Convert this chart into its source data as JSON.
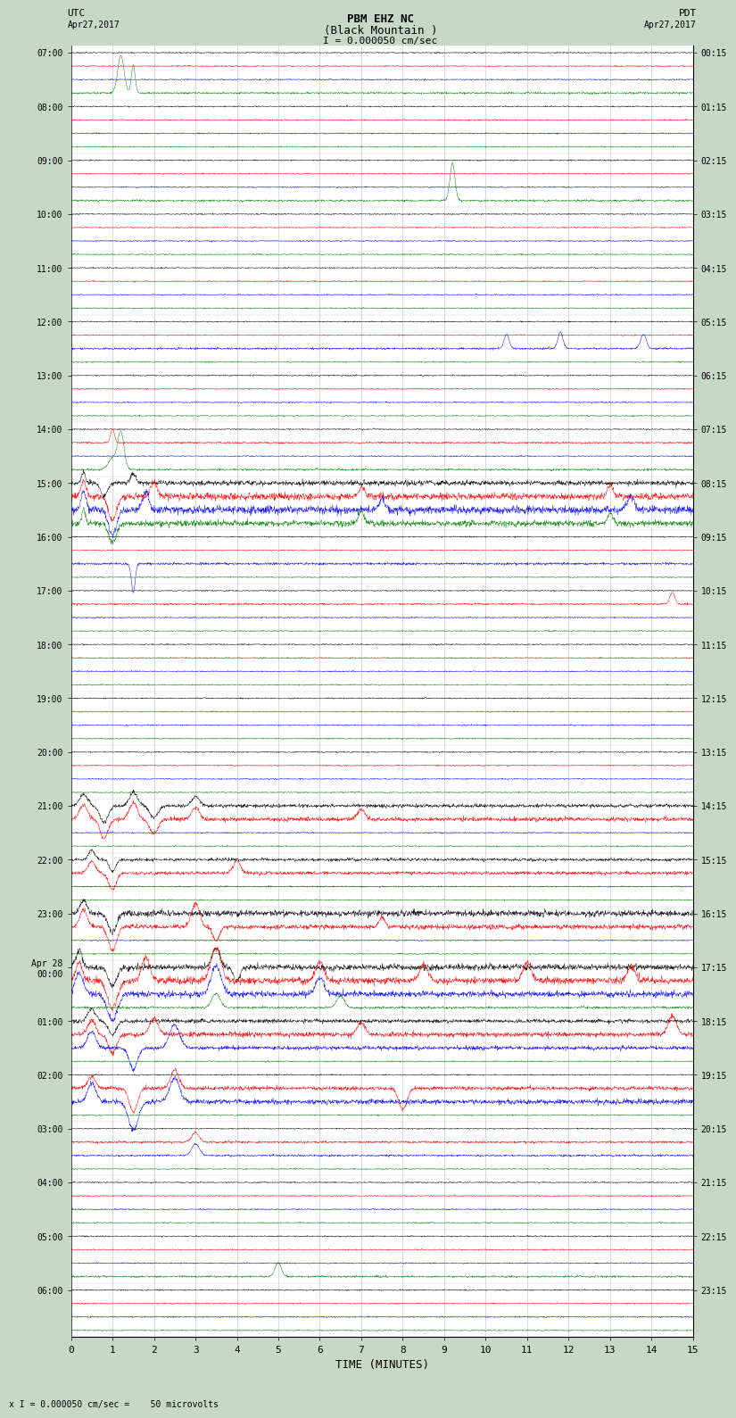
{
  "title_line1": "PBM EHZ NC",
  "title_line2": "(Black Mountain )",
  "scale_label": "I = 0.000050 cm/sec",
  "utc_label_line1": "UTC",
  "utc_label_line2": "Apr27,2017",
  "pdt_label_line1": "PDT",
  "pdt_label_line2": "Apr27,2017",
  "xlabel": "TIME (MINUTES)",
  "footnote": "x I = 0.000050 cm/sec =    50 microvolts",
  "left_times_utc": [
    "07:00",
    "08:00",
    "09:00",
    "10:00",
    "11:00",
    "12:00",
    "13:00",
    "14:00",
    "15:00",
    "16:00",
    "17:00",
    "18:00",
    "19:00",
    "20:00",
    "21:00",
    "22:00",
    "23:00",
    "Apr 28\n00:00",
    "01:00",
    "02:00",
    "03:00",
    "04:00",
    "05:00",
    "06:00"
  ],
  "right_times_pdt": [
    "00:15",
    "01:15",
    "02:15",
    "03:15",
    "04:15",
    "05:15",
    "06:15",
    "07:15",
    "08:15",
    "09:15",
    "10:15",
    "11:15",
    "12:15",
    "13:15",
    "14:15",
    "15:15",
    "16:15",
    "17:15",
    "18:15",
    "19:15",
    "20:15",
    "21:15",
    "22:15",
    "23:15"
  ],
  "n_rows": 24,
  "n_traces_per_row": 4,
  "colors": [
    "black",
    "red",
    "blue",
    "green"
  ],
  "bg_color": "#c8d8c8",
  "plot_bg": "#ffffff",
  "xmin": 0,
  "xmax": 15,
  "xticks": [
    0,
    1,
    2,
    3,
    4,
    5,
    6,
    7,
    8,
    9,
    10,
    11,
    12,
    13,
    14,
    15
  ],
  "base_noise_amp": 0.06,
  "seed": 42
}
